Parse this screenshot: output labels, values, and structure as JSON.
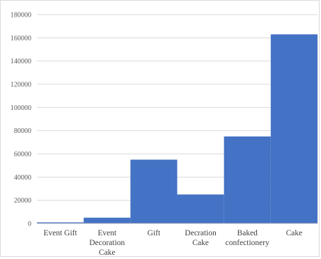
{
  "chart_data": {
    "type": "bar",
    "title": "",
    "xlabel": "",
    "ylabel": "",
    "categories": [
      [
        "Event Gift"
      ],
      [
        "Event",
        "Decoration",
        "Cake"
      ],
      [
        "Gift"
      ],
      [
        "Decration",
        "Cake"
      ],
      [
        "Baked",
        "confectionery"
      ],
      [
        "Cake"
      ]
    ],
    "values": [
      1000,
      5000,
      55000,
      25000,
      75000,
      163000
    ],
    "ylim": [
      0,
      180000
    ],
    "yticks": [
      "0",
      "20000",
      "40000",
      "60000",
      "80000",
      "100000",
      "120000",
      "140000",
      "160000",
      "180000"
    ],
    "grid": true,
    "legend": "none",
    "bar_color": "#4472c4"
  }
}
